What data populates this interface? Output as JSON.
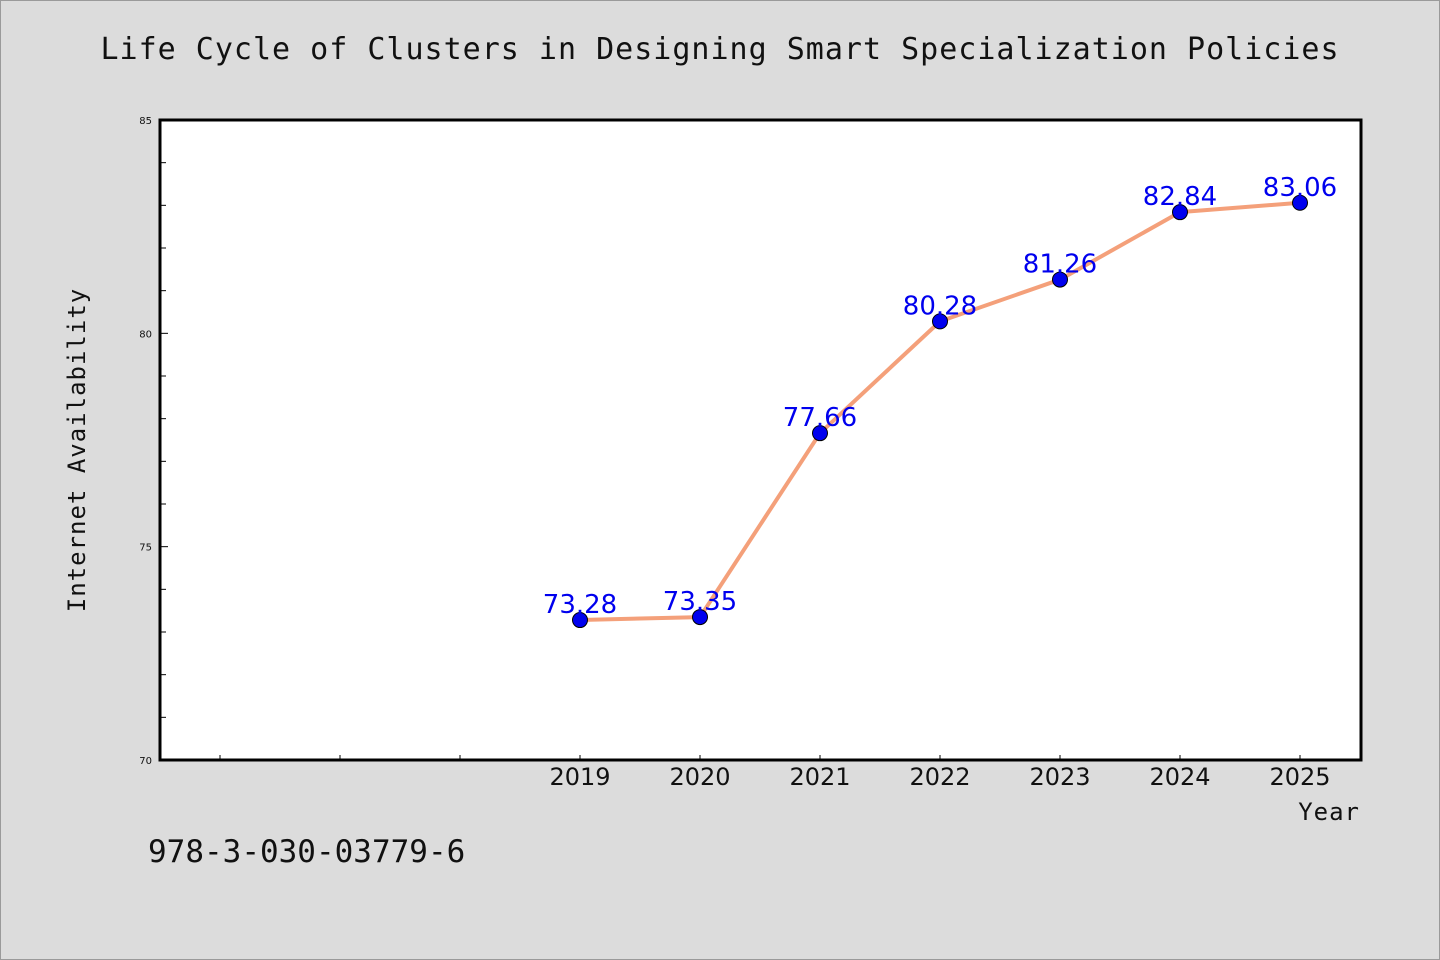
{
  "title": "Life Cycle of Clusters in Designing Smart Specialization Policies",
  "isbn": "978-3-030-03779-6",
  "colors": {
    "background": "#dcdcdc",
    "plot_background": "#ffffff",
    "line": "#f4a07a",
    "marker": "#0000ee",
    "data_label": "#0000ee"
  },
  "chart_data": {
    "type": "line",
    "title": "Life Cycle of Clusters in Designing Smart Specialization Policies",
    "xlabel": "Year",
    "ylabel": "Internet Availability",
    "x": [
      "2019",
      "2020",
      "2021",
      "2022",
      "2023",
      "2024",
      "2025"
    ],
    "series": [
      {
        "values": [
          73.28,
          73.35,
          77.66,
          80.28,
          81.26,
          82.84,
          83.06
        ]
      }
    ],
    "data_labels": [
      "73.28",
      "73.35",
      "77.66",
      "80.28",
      "81.26",
      "82.84",
      "83.06"
    ],
    "ylim": [
      70,
      85
    ],
    "y_major_ticks": [
      70,
      75,
      80,
      85
    ],
    "y_tick_labels": [
      "70",
      "75",
      "80",
      "85"
    ],
    "y_minor_step": 1,
    "x_tick_labels": [
      "2019",
      "2020",
      "2021",
      "2022",
      "2023",
      "2024",
      "2025"
    ],
    "grid": false,
    "legend": "none"
  }
}
